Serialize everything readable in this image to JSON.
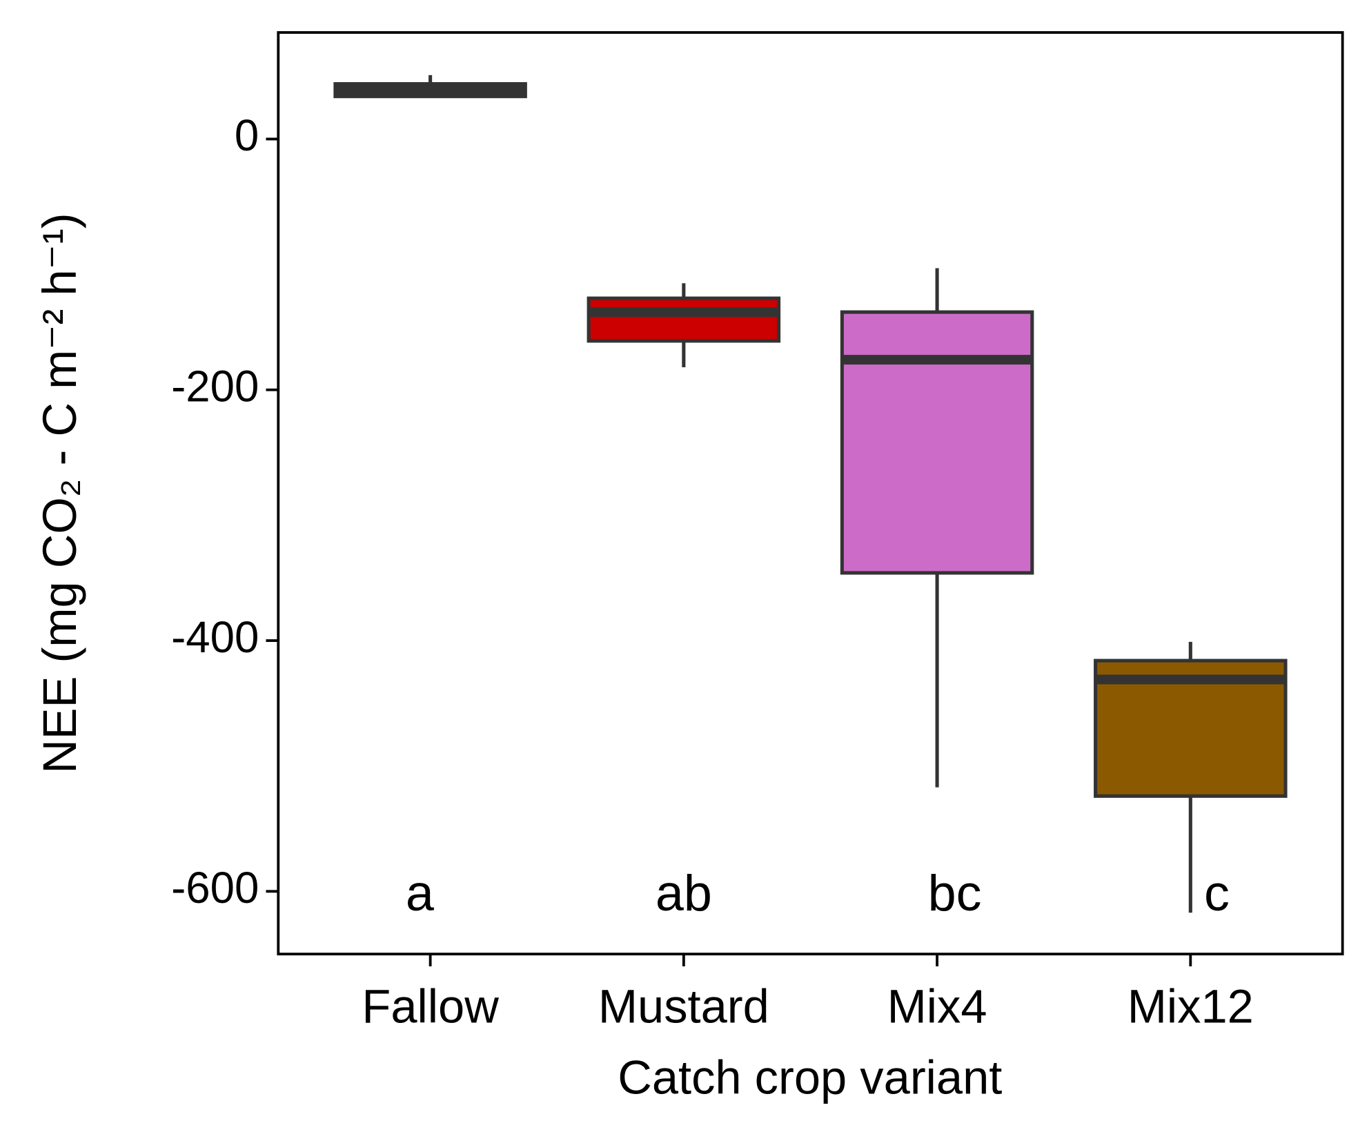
{
  "chart_data": {
    "type": "box",
    "x_label": "Catch crop variant",
    "y_label": "NEE (mg CO₂ - C m⁻² h⁻¹)",
    "categories": [
      "Fallow",
      "Mustard",
      "Mix4",
      "Mix12"
    ],
    "boxes": [
      {
        "min": 33,
        "q1": 34,
        "median": 39,
        "q3": 44,
        "max": 51,
        "color": "#333333"
      },
      {
        "min": -182,
        "q1": -161,
        "median": -138,
        "q3": -127,
        "max": -115,
        "color": "#cc0000"
      },
      {
        "min": -517,
        "q1": -346,
        "median": -176,
        "q3": -138,
        "max": -103,
        "color": "#cc6cc8"
      },
      {
        "min": -617,
        "q1": -524,
        "median": -431,
        "q3": -416,
        "max": -401,
        "color": "#8b5a00"
      }
    ],
    "group_letters": [
      "a",
      "ab",
      "bc",
      "c"
    ],
    "ylim": [
      -650,
      85
    ],
    "yticks": [
      -600,
      -400,
      -200,
      0
    ]
  }
}
